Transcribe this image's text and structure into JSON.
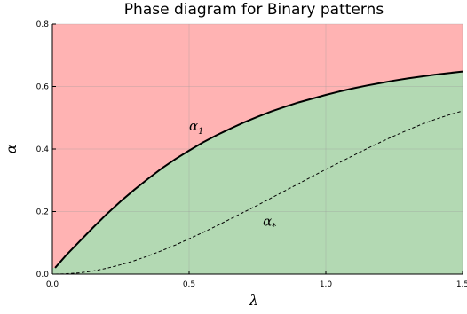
{
  "chart_data": {
    "type": "area",
    "title": "Phase diagram for Binary patterns",
    "xlabel": "λ",
    "ylabel": "α",
    "xlim": [
      0,
      1.5
    ],
    "ylim": [
      0,
      0.8
    ],
    "xticks": [
      0.0,
      0.5,
      1.0,
      1.5
    ],
    "xtick_labels": [
      "0.0",
      "0.5",
      "1.0",
      "1.5"
    ],
    "yticks": [
      0.0,
      0.2,
      0.4,
      0.6,
      0.8
    ],
    "ytick_labels": [
      "0.0",
      "0.2",
      "0.4",
      "0.6",
      "0.8"
    ],
    "grid": true,
    "colors": {
      "upper_region": "#ffb3b3",
      "lower_region": "#b3d9b3",
      "curve": "#000000",
      "grid": "#999999"
    },
    "series": [
      {
        "label": "α",
        "subscript": "1",
        "style": "solid",
        "label_at": [
          0.5,
          0.46
        ],
        "x": [
          0.01,
          0.05,
          0.1,
          0.15,
          0.2,
          0.25,
          0.3,
          0.35,
          0.4,
          0.45,
          0.5,
          0.55,
          0.6,
          0.65,
          0.7,
          0.75,
          0.8,
          0.85,
          0.9,
          0.95,
          1.0,
          1.05,
          1.1,
          1.15,
          1.2,
          1.25,
          1.3,
          1.35,
          1.4,
          1.45,
          1.5
        ],
        "y": [
          0.02,
          0.06,
          0.105,
          0.15,
          0.193,
          0.233,
          0.27,
          0.305,
          0.338,
          0.368,
          0.395,
          0.421,
          0.444,
          0.465,
          0.485,
          0.503,
          0.52,
          0.535,
          0.549,
          0.561,
          0.573,
          0.584,
          0.594,
          0.603,
          0.611,
          0.619,
          0.626,
          0.632,
          0.638,
          0.643,
          0.648
        ]
      },
      {
        "label": "α",
        "subscript": "*",
        "style": "dashed",
        "label_at": [
          0.77,
          0.155
        ],
        "x": [
          0.01,
          0.05,
          0.1,
          0.15,
          0.2,
          0.25,
          0.3,
          0.35,
          0.4,
          0.45,
          0.5,
          0.55,
          0.6,
          0.65,
          0.7,
          0.75,
          0.8,
          0.85,
          0.9,
          0.95,
          1.0,
          1.05,
          1.1,
          1.15,
          1.2,
          1.25,
          1.3,
          1.35,
          1.4,
          1.45,
          1.5
        ],
        "y": [
          0.0,
          0.001,
          0.004,
          0.01,
          0.019,
          0.03,
          0.043,
          0.058,
          0.075,
          0.093,
          0.113,
          0.133,
          0.154,
          0.176,
          0.198,
          0.22,
          0.243,
          0.266,
          0.289,
          0.312,
          0.335,
          0.357,
          0.379,
          0.401,
          0.422,
          0.442,
          0.461,
          0.479,
          0.495,
          0.509,
          0.522
        ]
      }
    ]
  }
}
